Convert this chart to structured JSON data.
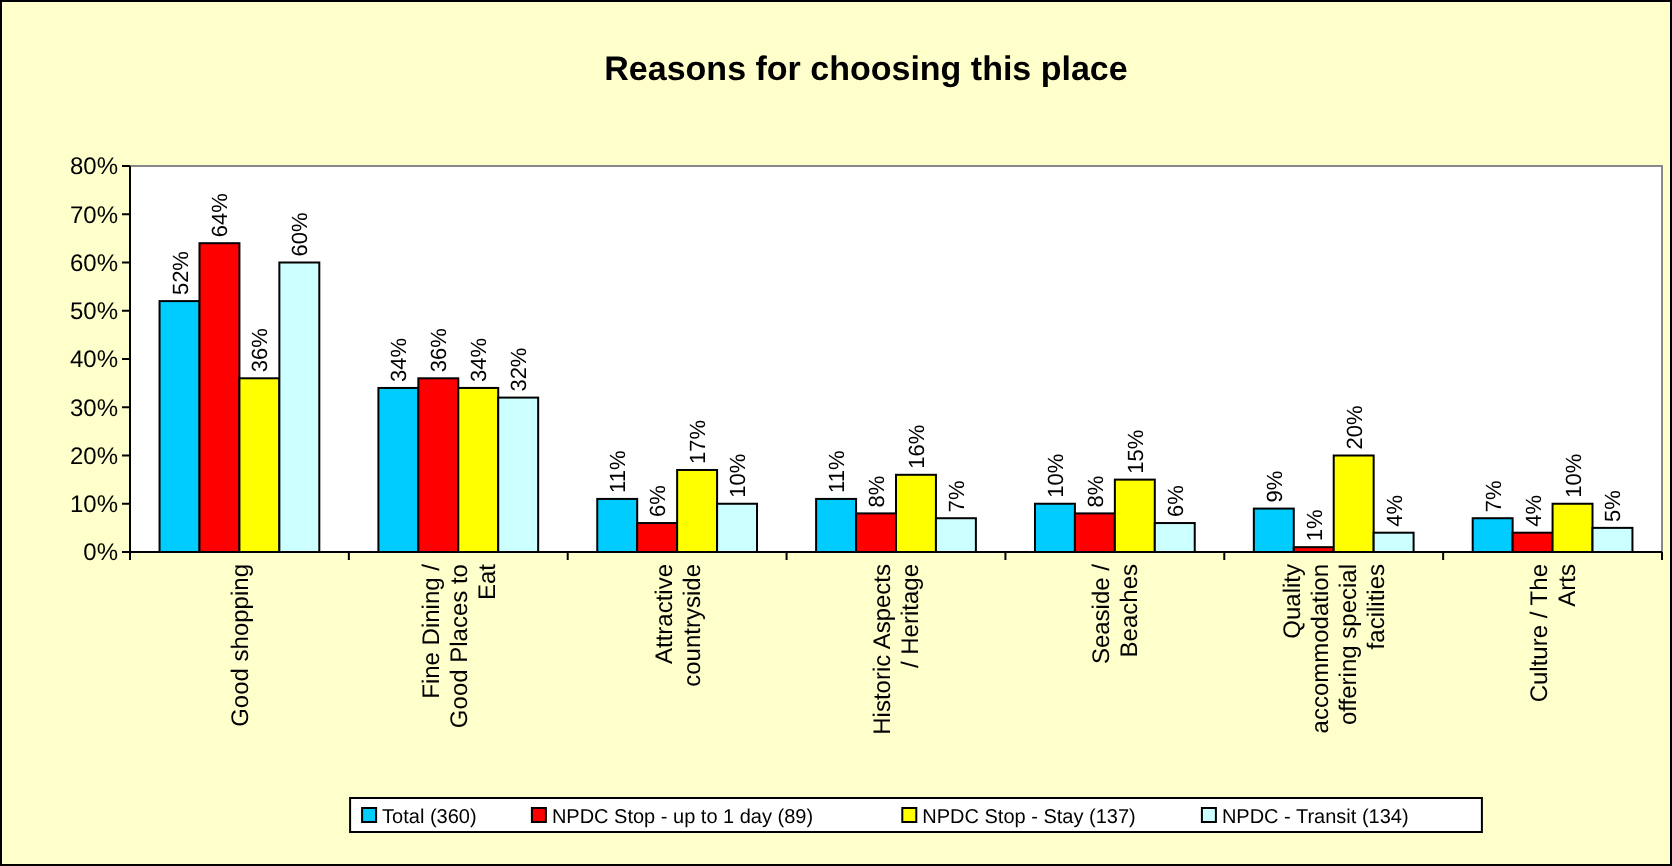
{
  "chart_data": {
    "type": "bar",
    "title": "Reasons for choosing this place",
    "categories": [
      "Good shopping",
      "Fine Dining / Good Places to Eat",
      "Attractive countryside",
      "Historic Aspects / Heritage",
      "Seaside / Beaches",
      "Quality accommodation offering special facilities",
      "Culture / The Arts"
    ],
    "series": [
      {
        "name": "Total (360)",
        "color": "#00ccff",
        "values": [
          52,
          34,
          11,
          11,
          10,
          9,
          7
        ],
        "value_labels": [
          "52%",
          "34%",
          "11%",
          "11%",
          "10%",
          "9%",
          "7%"
        ]
      },
      {
        "name": "NPDC Stop - up to 1 day (89)",
        "color": "#ff0000",
        "values": [
          64,
          36,
          6,
          8,
          8,
          1,
          4
        ],
        "value_labels": [
          "64%",
          "36%",
          "6%",
          "8%",
          "8%",
          "1%",
          "4%"
        ]
      },
      {
        "name": "NPDC Stop - Stay (137)",
        "color": "#ffff00",
        "values": [
          36,
          34,
          17,
          16,
          15,
          20,
          10
        ],
        "value_labels": [
          "36%",
          "34%",
          "17%",
          "16%",
          "15%",
          "20%",
          "10%"
        ]
      },
      {
        "name": "NPDC - Transit (134)",
        "color": "#ccffff",
        "values": [
          60,
          32,
          10,
          7,
          6,
          4,
          5
        ],
        "value_labels": [
          "60%",
          "32%",
          "10%",
          "7%",
          "6%",
          "4%",
          "5%"
        ]
      }
    ],
    "ylim": [
      0,
      80
    ],
    "yticks": [
      {
        "value": 0,
        "label": "0%"
      },
      {
        "value": 10,
        "label": "10%"
      },
      {
        "value": 20,
        "label": "20%"
      },
      {
        "value": 30,
        "label": "30%"
      },
      {
        "value": 40,
        "label": "40%"
      },
      {
        "value": 50,
        "label": "50%"
      },
      {
        "value": 60,
        "label": "60%"
      },
      {
        "value": 70,
        "label": "70%"
      },
      {
        "value": 80,
        "label": "80%"
      }
    ],
    "grid": false,
    "legend": "bottom"
  }
}
